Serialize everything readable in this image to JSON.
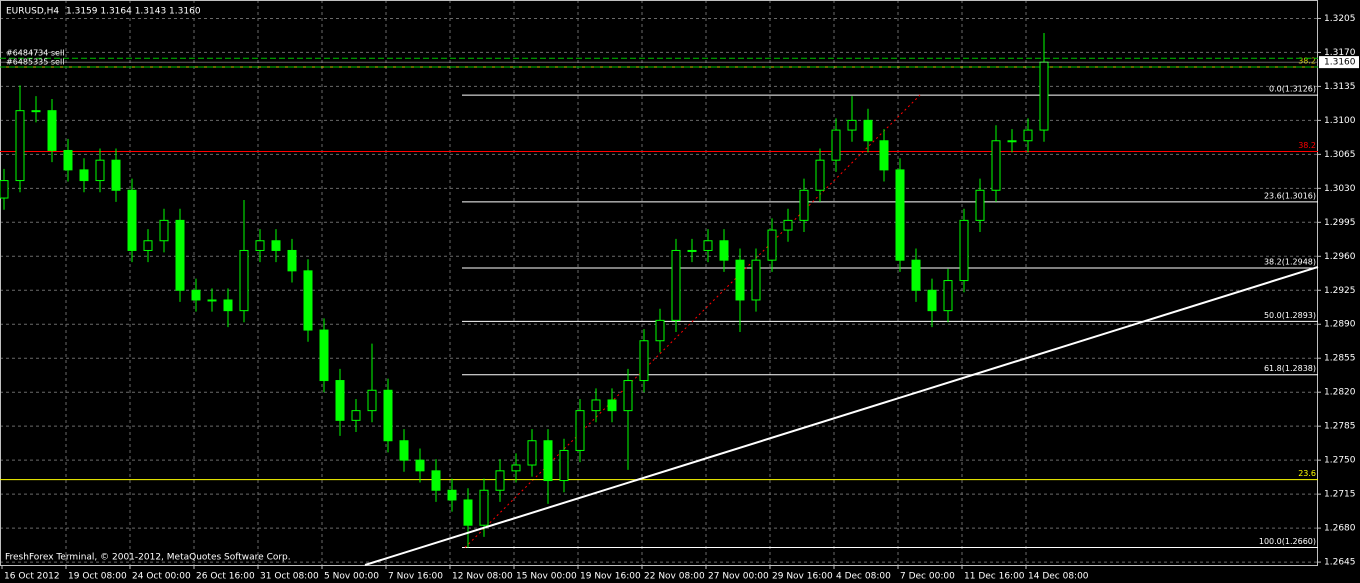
{
  "chart_data": {
    "type": "candlestick",
    "title": "EURUSD,H4",
    "header_values": "1.3159 1.3164 1.3143 1.3160",
    "footer": "FreshForex Terminal, © 2001-2012, MetaQuotes Software Corp.",
    "color": "#00ff00",
    "grid": true,
    "ylim": [
      1.2642,
      1.3224
    ],
    "yticks": [
      1.3205,
      {
        "value": 1.317,
        "label": "1.3170"
      },
      1.3135,
      {
        "value": 1.31,
        "label": "1.3100"
      },
      1.3065,
      {
        "value": 1.303,
        "label": "1.3030"
      },
      1.2995,
      {
        "value": 1.296,
        "label": "1.2960"
      },
      1.2925,
      {
        "value": 1.289,
        "label": "1.2890"
      },
      1.2855,
      {
        "value": 1.282,
        "label": "1.2820"
      },
      1.2785,
      {
        "value": 1.275,
        "label": "1.2750"
      },
      1.2715,
      {
        "value": 1.268,
        "label": "1.2680"
      },
      1.2645
    ],
    "categories": [
      "16 Oct 2012",
      "19 Oct 08:00",
      "24 Oct 00:00",
      "26 Oct 16:00",
      "31 Oct 08:00",
      "5 Nov 00:00",
      "7 Nov 16:00",
      "12 Nov 08:00",
      "15 Nov 00:00",
      "19 Nov 16:00",
      "22 Nov 08:00",
      "27 Nov 00:00",
      "29 Nov 16:00",
      "4 Dec 08:00",
      "7 Dec 00:00",
      "11 Dec 16:00",
      "14 Dec 08:00"
    ],
    "open": [
      1.302,
      1.3038,
      1.311,
      1.311,
      1.3069,
      1.3049,
      1.3038,
      1.3059,
      1.3028,
      1.2966,
      1.2976,
      1.2997,
      1.2925,
      1.2915,
      1.2915,
      1.2904,
      1.2966,
      1.2976,
      1.2966,
      1.2945,
      1.2884,
      1.2832,
      1.2791,
      1.2801,
      1.2822,
      1.277,
      1.275,
      1.2739,
      1.2719,
      1.2709,
      1.2683,
      1.2719,
      1.2739,
      1.2745,
      1.277,
      1.2729,
      1.276,
      1.2801,
      1.2812,
      1.2801,
      1.2832,
      1.2873,
      1.2894,
      1.2966,
      1.2966,
      1.2976,
      1.2956,
      1.2915,
      1.2956,
      1.2987,
      1.2997,
      1.3028,
      1.3059,
      1.309,
      1.31,
      1.3079,
      1.3049,
      1.2956,
      1.2925,
      1.2904,
      1.2935,
      1.2997,
      1.3028,
      1.3079,
      1.3079,
      1.309
    ],
    "high": [
      1.305,
      1.3136,
      1.3125,
      1.3122,
      1.3081,
      1.3061,
      1.3071,
      1.3071,
      1.304,
      1.2988,
      1.3009,
      1.3009,
      1.2937,
      1.2927,
      1.2927,
      1.3018,
      1.2988,
      1.2988,
      1.2978,
      1.2957,
      1.2896,
      1.2844,
      1.2813,
      1.287,
      1.2834,
      1.2782,
      1.2762,
      1.2751,
      1.2731,
      1.2721,
      1.2731,
      1.2751,
      1.2757,
      1.2782,
      1.2782,
      1.2772,
      1.2813,
      1.2824,
      1.2824,
      1.2844,
      1.2885,
      1.2906,
      1.2978,
      1.2978,
      1.2988,
      1.2988,
      1.2968,
      1.2968,
      1.2999,
      1.3009,
      1.304,
      1.3071,
      1.3102,
      1.3125,
      1.3112,
      1.3091,
      1.3061,
      1.2968,
      1.2937,
      1.2947,
      1.3009,
      1.304,
      1.3095,
      1.3091,
      1.3102,
      1.319
    ],
    "low": [
      1.3008,
      1.3026,
      1.3098,
      1.3057,
      1.3037,
      1.3026,
      1.3026,
      1.3016,
      1.2954,
      1.2954,
      1.2964,
      1.2913,
      1.2903,
      1.2903,
      1.2887,
      1.2892,
      1.2954,
      1.2954,
      1.2933,
      1.2872,
      1.282,
      1.2775,
      1.2779,
      1.2789,
      1.2758,
      1.2738,
      1.2727,
      1.2707,
      1.2697,
      1.266,
      1.2671,
      1.2707,
      1.2727,
      1.2733,
      1.2705,
      1.2717,
      1.2748,
      1.2789,
      1.2789,
      1.274,
      1.282,
      1.2861,
      1.2882,
      1.2954,
      1.2954,
      1.2944,
      1.2882,
      1.2903,
      1.2944,
      1.2975,
      1.2985,
      1.3016,
      1.3047,
      1.3078,
      1.3067,
      1.3037,
      1.2944,
      1.2913,
      1.2887,
      1.2892,
      1.2923,
      1.2985,
      1.3016,
      1.3067,
      1.3067,
      1.3078
    ],
    "close": [
      1.3038,
      1.311,
      1.311,
      1.3069,
      1.3049,
      1.3038,
      1.3059,
      1.3028,
      1.2966,
      1.2976,
      1.2997,
      1.2925,
      1.2915,
      1.2915,
      1.2904,
      1.2966,
      1.2976,
      1.2966,
      1.2945,
      1.2884,
      1.2832,
      1.2791,
      1.2801,
      1.2822,
      1.277,
      1.275,
      1.2739,
      1.2719,
      1.2709,
      1.2683,
      1.2719,
      1.2739,
      1.2745,
      1.277,
      1.2729,
      1.276,
      1.2801,
      1.2812,
      1.2801,
      1.2832,
      1.2873,
      1.2894,
      1.2966,
      1.2966,
      1.2976,
      1.2956,
      1.2915,
      1.2956,
      1.2987,
      1.2997,
      1.3028,
      1.3059,
      1.309,
      1.31,
      1.3079,
      1.3049,
      1.2956,
      1.2925,
      1.2904,
      1.2935,
      1.2997,
      1.3028,
      1.3079,
      1.3079,
      1.309,
      1.316
    ],
    "bid": {
      "value": 1.316,
      "label": "1.3160"
    },
    "fib_levels": [
      {
        "label": "0.0(1.3126)",
        "value": 1.3126
      },
      {
        "label": "23.6(1.3016)",
        "value": 1.3016
      },
      {
        "label": "38.2(1.2948)",
        "value": 1.2948
      },
      {
        "label": "50.0(1.2893)",
        "value": 1.2893
      },
      {
        "label": "61.8(1.2838)",
        "value": 1.2838
      },
      {
        "label": "100.0(1.2660)",
        "value": 1.266
      }
    ],
    "fib_color": "#ffffff",
    "fib_base_color": "#ff0000",
    "levels": [
      {
        "label": "38.2",
        "value": 1.3068,
        "color": "#ff0000"
      },
      {
        "label": "38.2",
        "value": 1.3155,
        "color": "#c8c800"
      },
      {
        "label": "23.6",
        "value": 1.273,
        "color": "#ffff00"
      }
    ],
    "orders": [
      {
        "label": "#6484734 sell",
        "value": 1.3164,
        "color": "#00c000"
      },
      {
        "label": "#6485335 sell",
        "value": 1.3155,
        "color": "#00c000"
      }
    ],
    "trendline": {
      "values": [
        1.2642,
        1.2949
      ],
      "color": "#ffffff"
    }
  }
}
